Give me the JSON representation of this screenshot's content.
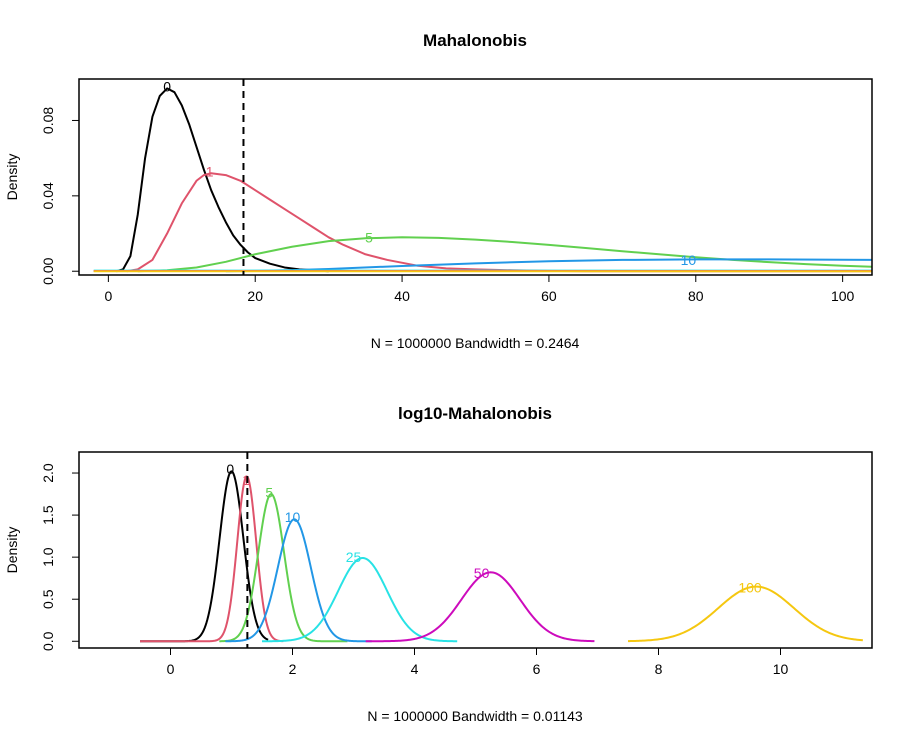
{
  "chart_data": [
    {
      "type": "line",
      "title": "Mahalonobis",
      "xlabel": "N = 1000000   Bandwidth = 0.2464",
      "ylabel": "Density",
      "xlim": [
        -4,
        104
      ],
      "ylim": [
        -0.002,
        0.102
      ],
      "xticks": [
        0,
        20,
        40,
        60,
        80,
        100
      ],
      "xtick_labels": [
        "0",
        "20",
        "40",
        "60",
        "80",
        "100"
      ],
      "yticks": [
        0.0,
        0.04,
        0.08
      ],
      "ytick_labels": [
        "0.00",
        "0.04",
        "0.08"
      ],
      "vline": 18.4,
      "grid": false,
      "series": [
        {
          "name": "0",
          "color": "#000000",
          "label_x": 8,
          "label_y": 0.098,
          "x": [
            1.1,
            2,
            3,
            4,
            5,
            6,
            7,
            8,
            9,
            10,
            11,
            12,
            13,
            14,
            15,
            16,
            17,
            18,
            19,
            20,
            22,
            24,
            26,
            28,
            30
          ],
          "y": [
            0.0,
            0.001,
            0.008,
            0.03,
            0.06,
            0.082,
            0.093,
            0.097,
            0.095,
            0.088,
            0.078,
            0.066,
            0.054,
            0.043,
            0.034,
            0.026,
            0.019,
            0.014,
            0.01,
            0.007,
            0.004,
            0.002,
            0.001,
            0.0005,
            0.0
          ]
        },
        {
          "name": "1",
          "color": "#DF536B",
          "label_x": 13.8,
          "label_y": 0.053,
          "x": [
            2.5,
            4,
            6,
            8,
            10,
            12,
            13,
            14,
            16,
            18,
            20,
            22,
            24,
            26,
            28,
            30,
            32,
            35,
            38,
            42,
            46,
            50,
            55,
            60,
            65,
            70,
            80,
            90,
            104
          ],
          "y": [
            0.0,
            0.001,
            0.006,
            0.02,
            0.036,
            0.048,
            0.051,
            0.052,
            0.051,
            0.048,
            0.043,
            0.038,
            0.033,
            0.028,
            0.023,
            0.018,
            0.014,
            0.009,
            0.006,
            0.003,
            0.0015,
            0.001,
            0.0005,
            0.0002,
            0.0,
            0.0,
            0.0,
            0.0,
            0.0
          ]
        },
        {
          "name": "5",
          "color": "#61D04F",
          "label_x": 35.5,
          "label_y": 0.018,
          "x": [
            4,
            8,
            12,
            16,
            20,
            25,
            30,
            35,
            40,
            45,
            50,
            55,
            60,
            65,
            70,
            75,
            80,
            85,
            90,
            95,
            100,
            104
          ],
          "y": [
            0.0,
            0.0005,
            0.002,
            0.005,
            0.009,
            0.013,
            0.016,
            0.0175,
            0.018,
            0.0177,
            0.0168,
            0.0155,
            0.014,
            0.0123,
            0.0106,
            0.009,
            0.0074,
            0.006,
            0.0048,
            0.0038,
            0.0029,
            0.0024
          ]
        },
        {
          "name": "10",
          "color": "#2297E6",
          "label_x": 79,
          "label_y": 0.006,
          "x": [
            16,
            20,
            25,
            30,
            40,
            50,
            60,
            70,
            80,
            90,
            100,
            104
          ],
          "y": [
            0.0,
            0.0002,
            0.0006,
            0.0012,
            0.0028,
            0.0042,
            0.0053,
            0.006,
            0.0063,
            0.0063,
            0.0061,
            0.006
          ]
        },
        {
          "name": "25",
          "color": "#28E2E5",
          "x": [
            -2,
            104
          ],
          "y": [
            0.0003,
            0.0003
          ]
        },
        {
          "name": "50",
          "color": "#CD0BBC",
          "x": [
            -2,
            104
          ],
          "y": [
            0.0001,
            0.0001
          ]
        },
        {
          "name": "100",
          "color": "#F5C710",
          "x": [
            -2,
            104
          ],
          "y": [
            0.0,
            0.0
          ]
        }
      ]
    },
    {
      "type": "line",
      "title": "log10-Mahalonobis",
      "xlabel": "N = 1000000   Bandwidth = 0.01143",
      "ylabel": "Density",
      "xlim": [
        -1.5,
        11.5
      ],
      "ylim": [
        -0.08,
        2.25
      ],
      "xticks": [
        0,
        2,
        4,
        6,
        8,
        10
      ],
      "xtick_labels": [
        "0",
        "2",
        "4",
        "6",
        "8",
        "10"
      ],
      "yticks": [
        0.0,
        0.5,
        1.0,
        1.5,
        2.0
      ],
      "ytick_labels": [
        "0.0",
        "0.5",
        "1.0",
        "1.5",
        "2.0"
      ],
      "vline": 1.26,
      "grid": false,
      "series": [
        {
          "name": "0",
          "color": "#000000",
          "mu": 1.0,
          "sigma": 0.195,
          "peak": 2.02,
          "xmin": -0.5,
          "xmax": 1.6,
          "label_x": 0.98,
          "label_y": 2.05
        },
        {
          "name": "1",
          "color": "#DF536B",
          "mu": 1.25,
          "sigma": 0.155,
          "peak": 1.96,
          "xmin": -0.5,
          "xmax": 1.85,
          "label_x": 1.24,
          "label_y": 1.92
        },
        {
          "name": "5",
          "color": "#61D04F",
          "mu": 1.65,
          "sigma": 0.21,
          "peak": 1.75,
          "xmin": 0.8,
          "xmax": 2.9,
          "label_x": 1.62,
          "label_y": 1.77
        },
        {
          "name": "10",
          "color": "#2297E6",
          "mu": 2.03,
          "sigma": 0.27,
          "peak": 1.45,
          "xmin": 0.9,
          "xmax": 3.3,
          "label_x": 2.0,
          "label_y": 1.48
        },
        {
          "name": "25",
          "color": "#28E2E5",
          "mu": 3.15,
          "sigma": 0.4,
          "peak": 0.99,
          "xmin": 1.5,
          "xmax": 4.7,
          "label_x": 3.0,
          "label_y": 1.0
        },
        {
          "name": "50",
          "color": "#CD0BBC",
          "mu": 5.25,
          "sigma": 0.48,
          "peak": 0.82,
          "xmin": 3.2,
          "xmax": 6.95,
          "label_x": 5.1,
          "label_y": 0.81
        },
        {
          "name": "100",
          "color": "#F5C710",
          "mu": 9.6,
          "sigma": 0.62,
          "peak": 0.65,
          "xmin": 7.5,
          "xmax": 11.35,
          "label_x": 9.5,
          "label_y": 0.64
        }
      ]
    }
  ]
}
